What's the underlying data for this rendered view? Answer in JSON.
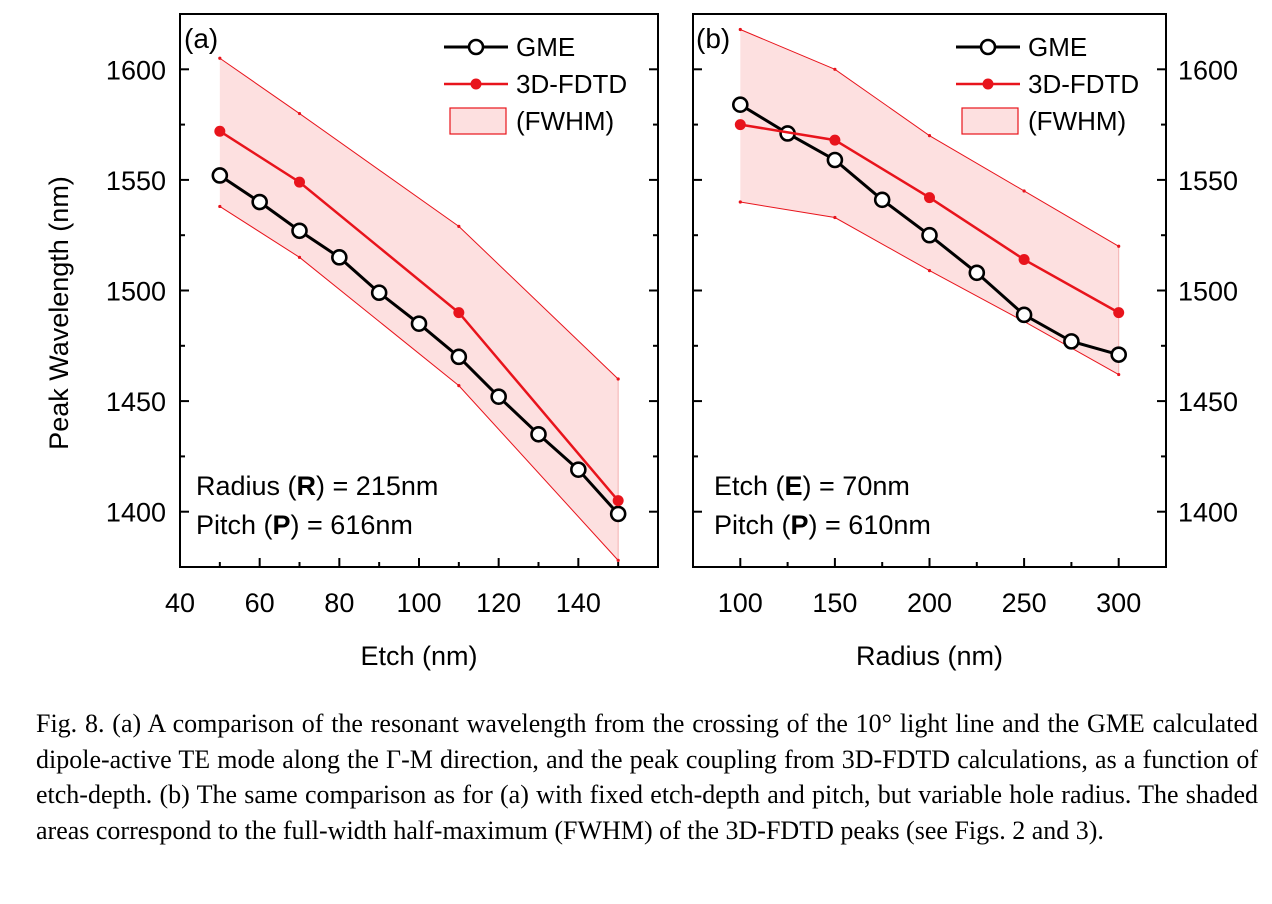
{
  "figure": {
    "ylabel": "Peak Wavelength (nm)",
    "caption": "Fig. 8. (a) A comparison of the resonant wavelength from the crossing of the 10° light line and the GME calculated dipole-active TE mode along the Γ-M direction, and the peak coupling from 3D-FDTD calculations, as a function of etch-depth. (b) The same comparison as for (a) with fixed etch-depth and pitch, but variable hole radius. The shaded areas correspond to the full-width half-maximum (FWHM) of the 3D-FDTD peaks (see Figs. 2 and 3).",
    "colors": {
      "gme": "#000000",
      "fdtd": "#e8141c",
      "fwhm_fill": "#fde0e0",
      "fwhm_edge": "#e8141c"
    }
  },
  "chart_data": [
    {
      "type": "line",
      "panel_label": "(a)",
      "xlabel": "Etch (nm)",
      "ylabel": "Peak Wavelength (nm)",
      "xlim": [
        40,
        160
      ],
      "ylim": [
        1375,
        1625
      ],
      "xticks": [
        40,
        60,
        80,
        100,
        120,
        140
      ],
      "yticks": [
        1400,
        1450,
        1500,
        1550,
        1600
      ],
      "y_tick_side": "left",
      "legend_placement": "top-right",
      "annotation_lines": [
        [
          {
            "t": "Radius ("
          },
          {
            "t": "R",
            "b": true
          },
          {
            "t": ") = 215nm"
          }
        ],
        [
          {
            "t": "Pitch ("
          },
          {
            "t": "P",
            "b": true
          },
          {
            "t": ") = 616nm"
          }
        ]
      ],
      "series": [
        {
          "name": "GME",
          "marker": "open-circle",
          "x": [
            50,
            60,
            70,
            80,
            90,
            100,
            110,
            120,
            130,
            140,
            150
          ],
          "y": [
            1552,
            1540,
            1527,
            1515,
            1499,
            1485,
            1470,
            1452,
            1435,
            1419,
            1399
          ]
        },
        {
          "name": "3D-FDTD",
          "marker": "filled-circle",
          "x": [
            50,
            70,
            110,
            150
          ],
          "y": [
            1572,
            1549,
            1490,
            1405
          ]
        }
      ],
      "fwhm": {
        "name": "(FWHM)",
        "x": [
          50,
          70,
          110,
          150
        ],
        "upper": [
          1605,
          1580,
          1529,
          1460
        ],
        "lower": [
          1538,
          1515,
          1457,
          1378
        ]
      }
    },
    {
      "type": "line",
      "panel_label": "(b)",
      "xlabel": "Radius (nm)",
      "ylabel": "",
      "xlim": [
        75,
        325
      ],
      "ylim": [
        1375,
        1625
      ],
      "xticks": [
        100,
        150,
        200,
        250,
        300
      ],
      "yticks": [
        1400,
        1450,
        1500,
        1550,
        1600
      ],
      "y_tick_side": "right",
      "legend_placement": "top-right",
      "annotation_lines": [
        [
          {
            "t": "Etch ("
          },
          {
            "t": "E",
            "b": true
          },
          {
            "t": ") = 70nm"
          }
        ],
        [
          {
            "t": "Pitch ("
          },
          {
            "t": "P",
            "b": true
          },
          {
            "t": ") = 610nm"
          }
        ]
      ],
      "series": [
        {
          "name": "GME",
          "marker": "open-circle",
          "x": [
            100,
            125,
            150,
            175,
            200,
            225,
            250,
            275,
            300
          ],
          "y": [
            1584,
            1571,
            1559,
            1541,
            1525,
            1508,
            1489,
            1477,
            1471
          ]
        },
        {
          "name": "3D-FDTD",
          "marker": "filled-circle",
          "x": [
            100,
            150,
            200,
            250,
            300
          ],
          "y": [
            1575,
            1568,
            1542,
            1514,
            1490
          ]
        }
      ],
      "fwhm": {
        "name": "(FWHM)",
        "x": [
          100,
          150,
          200,
          250,
          300
        ],
        "upper": [
          1618,
          1600,
          1570,
          1545,
          1520
        ],
        "lower": [
          1540,
          1533,
          1509,
          1486,
          1462
        ]
      }
    }
  ]
}
